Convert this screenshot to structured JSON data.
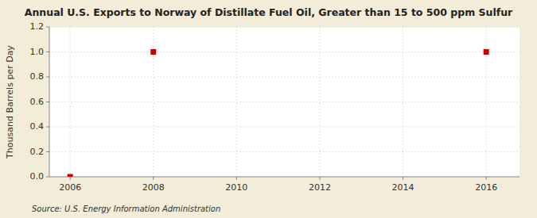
{
  "chart_data": {
    "type": "scatter",
    "title": "Annual U.S. Exports to Norway of Distillate Fuel Oil, Greater than 15 to 500 ppm Sulfur",
    "ylabel": "Thousand Barrels per Day",
    "source": "Source: U.S. Energy Information Administration",
    "x": [
      2006,
      2008,
      2016
    ],
    "values": [
      0.0,
      1.0,
      1.0
    ],
    "color": "#CC0000",
    "marker": "square",
    "xlim": [
      2005.5,
      2016.8
    ],
    "ylim": [
      0.0,
      1.2
    ],
    "xticks": [
      2006,
      2008,
      2010,
      2012,
      2014,
      2016
    ],
    "yticks": [
      {
        "value": 0.0,
        "label": "0.0"
      },
      0.2,
      0.4,
      0.6,
      0.8,
      {
        "value": 1.0,
        "label": "1.0"
      },
      1.2
    ],
    "grid": true
  }
}
